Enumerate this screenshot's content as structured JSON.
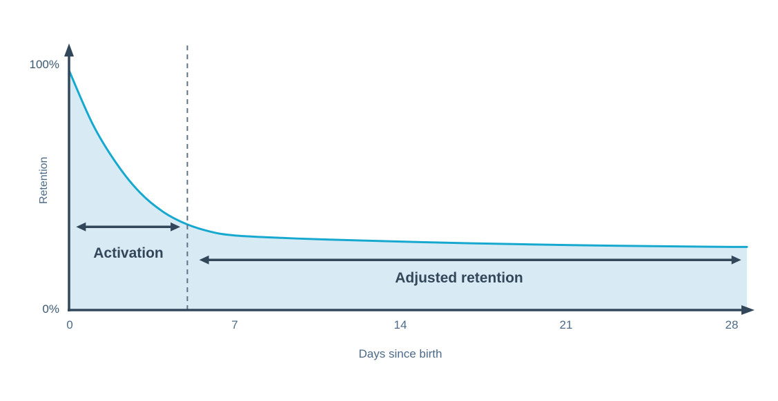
{
  "chart_data": {
    "type": "area",
    "title": "",
    "xlabel": "Days since birth",
    "ylabel": "Retention",
    "x_ticks": [
      "0",
      "7",
      "14",
      "21",
      "28"
    ],
    "x_tick_values": [
      0,
      7,
      14,
      21,
      28
    ],
    "y_tick_labels": [
      "100%",
      "0%"
    ],
    "xlim": [
      0,
      28
    ],
    "ylim": [
      0,
      100
    ],
    "grid": false,
    "legend": false,
    "series": [
      {
        "name": "Retention curve",
        "x": [
          0,
          1,
          2,
          3,
          4,
          5,
          6,
          7,
          9,
          11,
          14,
          17,
          21,
          24,
          28
        ],
        "y": [
          98,
          76,
          60,
          48,
          40,
          35,
          32,
          30.5,
          29.5,
          28.8,
          28,
          27.3,
          26.6,
          26.2,
          25.8
        ],
        "line_color": "#16a8ce",
        "fill_color": "#d8eaf4"
      }
    ],
    "annotations": {
      "dashed_line_x": 5,
      "ranges": [
        {
          "label": "Activation",
          "x_start": 0.3,
          "x_end": 4.7,
          "y": 34
        },
        {
          "label": "Adjusted retention",
          "x_start": 5.5,
          "x_end": 28.4,
          "y": 20.5
        }
      ]
    },
    "colors": {
      "axis": "#33475b",
      "tick_text": "#4c6a87",
      "annotation_text": "#33475b",
      "dashed_line": "#5d7286"
    }
  }
}
